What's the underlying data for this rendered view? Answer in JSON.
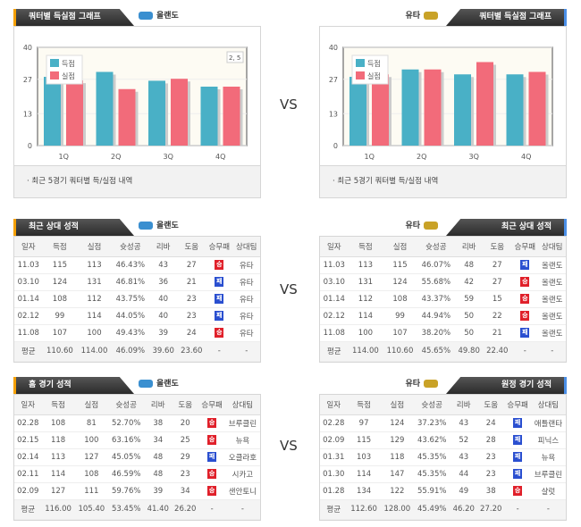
{
  "vs_label": "VS",
  "colors": {
    "score": "#49b0c6",
    "allowed": "#f26b7a",
    "win": "#e0202a",
    "loss": "#2a4fd0"
  },
  "charts": {
    "title": "쿼터별 득실점 그래프",
    "footnote": "· 최근 5경기 쿼터별 득/실점 내역",
    "left_team": "올랜도",
    "right_team": "유타",
    "tooltip": "2, 5"
  },
  "chart_data": [
    {
      "type": "bar",
      "title": "쿼터별 득실점 그래프",
      "categories": [
        "1Q",
        "2Q",
        "3Q",
        "4Q"
      ],
      "ylim": [
        0,
        40
      ],
      "yticks": [
        "0",
        "13",
        "27",
        "40"
      ],
      "legend": "top-left",
      "series": [
        {
          "name": "득점",
          "values": [
            28,
            30,
            26.4,
            24
          ]
        },
        {
          "name": "실점",
          "values": [
            26.5,
            23,
            27.2,
            24
          ]
        }
      ]
    },
    {
      "type": "bar",
      "title": "쿼터별 득실점 그래프",
      "categories": [
        "1Q",
        "2Q",
        "3Q",
        "4Q"
      ],
      "ylim": [
        0,
        40
      ],
      "yticks": [
        "0",
        "13",
        "27",
        "40"
      ],
      "legend": "top-left",
      "series": [
        {
          "name": "득점",
          "values": [
            28,
            31,
            29,
            29
          ]
        },
        {
          "name": "실점",
          "values": [
            29,
            31,
            34,
            30
          ]
        }
      ]
    }
  ],
  "columns": [
    "일자",
    "득점",
    "실점",
    "슛성공",
    "리바",
    "도움",
    "승무패",
    "상대팀"
  ],
  "tables": [
    {
      "title": "최근 상대 성적",
      "team": "올랜도",
      "side": "L",
      "rows": [
        [
          "11.03",
          "115",
          "113",
          "46.43%",
          "43",
          "27",
          "승",
          "유타"
        ],
        [
          "03.10",
          "124",
          "131",
          "46.81%",
          "36",
          "21",
          "패",
          "유타"
        ],
        [
          "01.14",
          "108",
          "112",
          "43.75%",
          "40",
          "23",
          "패",
          "유타"
        ],
        [
          "02.12",
          "99",
          "114",
          "44.05%",
          "40",
          "23",
          "패",
          "유타"
        ],
        [
          "11.08",
          "107",
          "100",
          "49.43%",
          "39",
          "24",
          "승",
          "유타"
        ]
      ],
      "avg": [
        "평균",
        "110.60",
        "114.00",
        "46.09%",
        "39.60",
        "23.60",
        "-",
        "-"
      ]
    },
    {
      "title": "최근 상대 성적",
      "team": "유타",
      "side": "R",
      "rows": [
        [
          "11.03",
          "113",
          "115",
          "46.07%",
          "48",
          "27",
          "패",
          "올랜도"
        ],
        [
          "03.10",
          "131",
          "124",
          "55.68%",
          "42",
          "27",
          "승",
          "올랜도"
        ],
        [
          "01.14",
          "112",
          "108",
          "43.37%",
          "59",
          "15",
          "승",
          "올랜도"
        ],
        [
          "02.12",
          "114",
          "99",
          "44.94%",
          "50",
          "22",
          "승",
          "올랜도"
        ],
        [
          "11.08",
          "100",
          "107",
          "38.20%",
          "50",
          "21",
          "패",
          "올랜도"
        ]
      ],
      "avg": [
        "평균",
        "114.00",
        "110.60",
        "45.65%",
        "49.80",
        "22.40",
        "-",
        "-"
      ]
    },
    {
      "title": "홈 경기 성적",
      "team": "올랜도",
      "side": "L",
      "rows": [
        [
          "02.28",
          "108",
          "81",
          "52.70%",
          "38",
          "20",
          "승",
          "브루클린"
        ],
        [
          "02.15",
          "118",
          "100",
          "63.16%",
          "34",
          "25",
          "승",
          "뉴욕"
        ],
        [
          "02.14",
          "113",
          "127",
          "45.05%",
          "48",
          "29",
          "패",
          "오클라호"
        ],
        [
          "02.11",
          "114",
          "108",
          "46.59%",
          "48",
          "23",
          "승",
          "시카고"
        ],
        [
          "02.09",
          "127",
          "111",
          "59.76%",
          "39",
          "34",
          "승",
          "샌안토니"
        ]
      ],
      "avg": [
        "평균",
        "116.00",
        "105.40",
        "53.45%",
        "41.40",
        "26.20",
        "-",
        "-"
      ]
    },
    {
      "title": "원정 경기 성적",
      "team": "유타",
      "side": "R",
      "rows": [
        [
          "02.28",
          "97",
          "124",
          "37.23%",
          "43",
          "24",
          "패",
          "애틀랜타"
        ],
        [
          "02.09",
          "115",
          "129",
          "43.62%",
          "52",
          "28",
          "패",
          "피닉스"
        ],
        [
          "01.31",
          "103",
          "118",
          "45.35%",
          "43",
          "23",
          "패",
          "뉴욕"
        ],
        [
          "01.30",
          "114",
          "147",
          "45.35%",
          "44",
          "23",
          "패",
          "브루클린"
        ],
        [
          "01.28",
          "134",
          "122",
          "55.91%",
          "49",
          "38",
          "승",
          "샬럿"
        ]
      ],
      "avg": [
        "평균",
        "112.60",
        "128.00",
        "45.49%",
        "46.20",
        "27.20",
        "-",
        "-"
      ]
    }
  ]
}
